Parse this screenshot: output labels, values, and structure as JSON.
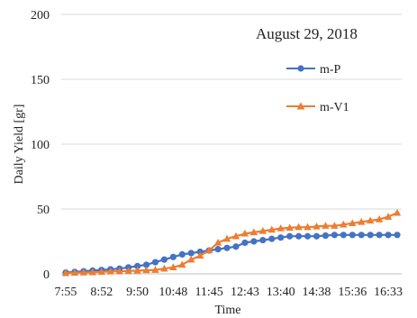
{
  "chart_data": {
    "type": "line",
    "annotation": "August 29, 2018",
    "xlabel": "Time",
    "ylabel": "Daily Yield [gr]",
    "ylim": [
      0,
      200
    ],
    "yticks": [
      0,
      50,
      100,
      150,
      200
    ],
    "grid": "horizontal",
    "legend_position": "right",
    "x": [
      "7:55",
      "8:09",
      "8:24",
      "8:38",
      "8:52",
      "9:07",
      "9:21",
      "9:36",
      "9:50",
      "10:05",
      "10:19",
      "10:34",
      "10:48",
      "11:02",
      "11:17",
      "11:31",
      "11:45",
      "12:00",
      "12:14",
      "12:29",
      "12:43",
      "12:58",
      "13:12",
      "13:26",
      "13:40",
      "13:55",
      "14:09",
      "14:24",
      "14:38",
      "14:53",
      "15:07",
      "15:22",
      "15:36",
      "15:50",
      "16:05",
      "16:19",
      "16:33",
      "16:48"
    ],
    "xtick_labels": [
      "7:55",
      "8:52",
      "9:50",
      "10:48",
      "11:45",
      "12:43",
      "13:40",
      "14:38",
      "15:36",
      "16:33"
    ],
    "series": [
      {
        "name": "m-P",
        "color": "#4472C4",
        "marker": "circle",
        "values": [
          1,
          1.5,
          2,
          2.5,
          3,
          3.5,
          4,
          5,
          6,
          7,
          9,
          11,
          13,
          15,
          16,
          17,
          18,
          19,
          20,
          21,
          24,
          25,
          26,
          27,
          28,
          29,
          29,
          29,
          29,
          29.5,
          30,
          30,
          30,
          30,
          30,
          30,
          30,
          30
        ]
      },
      {
        "name": "m-V1",
        "color": "#ED7D31",
        "marker": "triangle",
        "values": [
          0.5,
          0.8,
          1,
          1.2,
          1.5,
          1.8,
          2,
          2.2,
          2.5,
          2.8,
          3,
          4,
          5,
          7,
          11,
          14,
          18,
          24,
          27,
          29,
          31,
          32,
          33,
          34,
          35,
          35.5,
          36,
          36,
          36.5,
          37,
          37,
          38,
          39,
          40,
          41,
          42,
          44,
          47
        ]
      }
    ]
  }
}
